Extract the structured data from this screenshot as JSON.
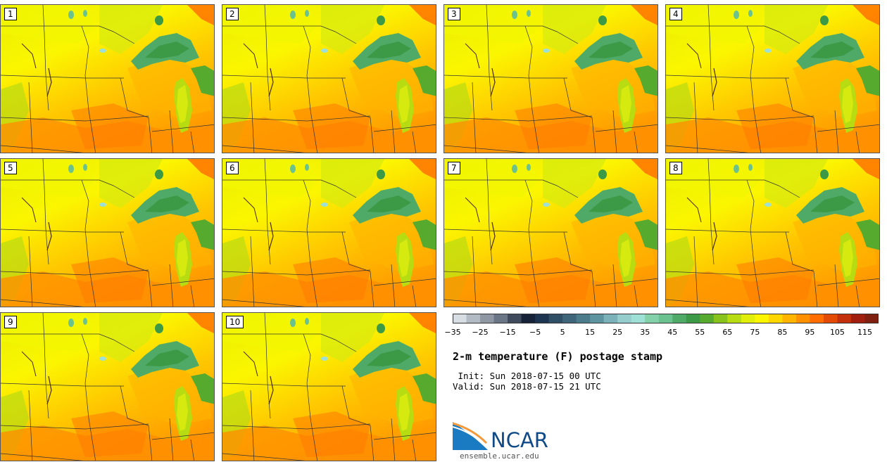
{
  "panels": [
    "1",
    "2",
    "3",
    "4",
    "5",
    "6",
    "7",
    "8",
    "9",
    "10"
  ],
  "legend": {
    "colors": [
      "#d7dde2",
      "#b2bac3",
      "#8e97a2",
      "#6a7585",
      "#3f4a5c",
      "#152238",
      "#1d3550",
      "#2f4f66",
      "#3e657a",
      "#4c7b8c",
      "#5e93a0",
      "#7bb1b8",
      "#95cccc",
      "#9fe0d6",
      "#82d1a8",
      "#6cc28f",
      "#4faa67",
      "#3c9a46",
      "#56aa2e",
      "#88c21d",
      "#b8dc12",
      "#e0ee0a",
      "#fbf600",
      "#ffd700",
      "#ffb400",
      "#ff9100",
      "#ff6c00",
      "#e34a06",
      "#c2300c",
      "#a01f0f",
      "#802010"
    ],
    "labels": [
      "−35",
      "−25",
      "−15",
      "−5",
      "5",
      "15",
      "25",
      "35",
      "45",
      "55",
      "65",
      "75",
      "85",
      "95",
      "105",
      "115"
    ]
  },
  "title": "2-m temperature (F) postage stamp",
  "init": " Init: Sun 2018-07-15 00 UTC",
  "valid": "Valid: Sun 2018-07-15 21 UTC",
  "logo": {
    "text": "NCAR",
    "colors": {
      "blue": "#1a7ac2",
      "orange": "#f39a3c",
      "navy": "#0f4a86"
    }
  },
  "site": "ensemble.ucar.edu"
}
